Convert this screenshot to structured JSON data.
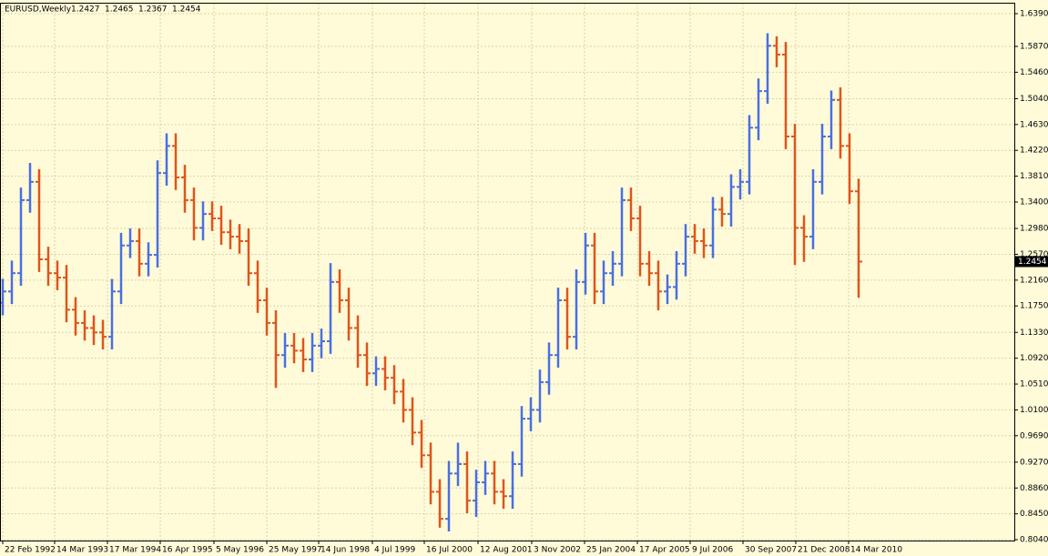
{
  "chart_data": {
    "type": "ohlc",
    "title": "EURUSD,Weekly",
    "header_values": [
      1.2427,
      1.2465,
      1.2367,
      1.2454
    ],
    "up_color": "#4a6fe0",
    "down_color": "#e0541c",
    "grid": true,
    "xlim": [
      -3,
      1111
    ],
    "ylim": [
      0.8026,
      1.6549
    ],
    "xticks": [
      {
        "value": 0,
        "label": "22 Feb 1992"
      },
      {
        "value": 57,
        "label": "14 Mar 1993"
      },
      {
        "value": 115,
        "label": "17 Mar 1994"
      },
      {
        "value": 173,
        "label": "16 Apr 1995"
      },
      {
        "value": 232,
        "label": "5 May 1996"
      },
      {
        "value": 290,
        "label": "25 May 1997"
      },
      {
        "value": 347,
        "label": "14 Jun 1998"
      },
      {
        "value": 406,
        "label": "4 Jul 1999"
      },
      {
        "value": 463,
        "label": "16 Jul 2000"
      },
      {
        "value": 522,
        "label": "12 Aug 2001"
      },
      {
        "value": 581,
        "label": "3 Nov 2002"
      },
      {
        "value": 639,
        "label": "25 Jan 2004"
      },
      {
        "value": 697,
        "label": "17 Apr 2005"
      },
      {
        "value": 755,
        "label": "9 Jul 2006"
      },
      {
        "value": 813,
        "label": "30 Sep 2007"
      },
      {
        "value": 871,
        "label": "21 Dec 2008"
      },
      {
        "value": 929,
        "label": "14 Mar 2010"
      }
    ],
    "yticks": [
      {
        "value": 1.639,
        "label": "1.6390"
      },
      {
        "value": 1.587,
        "label": "1.5870"
      },
      {
        "value": 1.546,
        "label": "1.5460"
      },
      {
        "value": 1.504,
        "label": "1.5040"
      },
      {
        "value": 1.463,
        "label": "1.4630"
      },
      {
        "value": 1.422,
        "label": "1.4220"
      },
      {
        "value": 1.381,
        "label": "1.3810"
      },
      {
        "value": 1.34,
        "label": "1.3400"
      },
      {
        "value": 1.298,
        "label": "1.2980"
      },
      {
        "value": 1.257,
        "label": "1.2570"
      },
      {
        "value": 1.216,
        "label": "1.2160"
      },
      {
        "value": 1.175,
        "label": "1.1750"
      },
      {
        "value": 1.133,
        "label": "1.1330"
      },
      {
        "value": 1.092,
        "label": "1.0920"
      },
      {
        "value": 1.051,
        "label": "1.0510"
      },
      {
        "value": 1.01,
        "label": "1.0100"
      },
      {
        "value": 0.969,
        "label": "0.9690"
      },
      {
        "value": 0.927,
        "label": "0.9270"
      },
      {
        "value": 0.886,
        "label": "0.8860"
      },
      {
        "value": 0.845,
        "label": "0.8450"
      },
      {
        "value": 0.804,
        "label": "0.8040"
      }
    ],
    "x": [
      0,
      10,
      20,
      30,
      40,
      50,
      60,
      70,
      80,
      90,
      100,
      110,
      120,
      130,
      140,
      150,
      160,
      170,
      180,
      190,
      200,
      210,
      220,
      230,
      240,
      250,
      260,
      270,
      280,
      290,
      300,
      310,
      320,
      330,
      340,
      350,
      360,
      370,
      380,
      390,
      400,
      410,
      420,
      430,
      440,
      450,
      460,
      470,
      480,
      490,
      500,
      510,
      520,
      530,
      540,
      550,
      560,
      570,
      580,
      590,
      600,
      610,
      620,
      630,
      640,
      650,
      660,
      670,
      680,
      690,
      700,
      710,
      720,
      730,
      740,
      750,
      760,
      770,
      780,
      790,
      800,
      810,
      820,
      830,
      840,
      850,
      860,
      870,
      880,
      890,
      900,
      910,
      920,
      930,
      940
    ],
    "open": [
      1.18,
      1.198,
      1.227,
      1.343,
      1.372,
      1.249,
      1.227,
      1.22,
      1.169,
      1.148,
      1.14,
      1.133,
      1.126,
      1.198,
      1.271,
      1.278,
      1.242,
      1.256,
      1.386,
      1.429,
      1.379,
      1.343,
      1.299,
      1.321,
      1.314,
      1.292,
      1.285,
      1.278,
      1.227,
      1.184,
      1.148,
      1.097,
      1.112,
      1.104,
      1.09,
      1.112,
      1.119,
      1.213,
      1.184,
      1.14,
      1.097,
      1.068,
      1.075,
      1.061,
      1.039,
      1.01,
      0.974,
      0.938,
      0.88,
      0.837,
      0.909,
      0.924,
      0.866,
      0.895,
      0.909,
      0.88,
      0.873,
      0.924,
      0.996,
      1.01,
      1.054,
      1.097,
      1.184,
      1.126,
      1.213,
      1.271,
      1.198,
      1.227,
      1.242,
      1.343,
      1.314,
      1.242,
      1.227,
      1.198,
      1.205,
      1.242,
      1.285,
      1.278,
      1.271,
      1.328,
      1.321,
      1.364,
      1.372,
      1.458,
      1.516,
      1.588,
      1.574,
      1.444,
      1.299,
      1.285,
      1.372,
      1.444,
      1.502,
      1.429,
      1.357
    ],
    "high": [
      1.218,
      1.247,
      1.363,
      1.402,
      1.392,
      1.269,
      1.247,
      1.24,
      1.189,
      1.168,
      1.16,
      1.153,
      1.218,
      1.291,
      1.298,
      1.298,
      1.276,
      1.406,
      1.449,
      1.449,
      1.399,
      1.363,
      1.341,
      1.341,
      1.334,
      1.312,
      1.305,
      1.298,
      1.247,
      1.204,
      1.168,
      1.132,
      1.132,
      1.124,
      1.132,
      1.139,
      1.243,
      1.233,
      1.204,
      1.16,
      1.117,
      1.095,
      1.095,
      1.081,
      1.059,
      1.03,
      0.994,
      0.958,
      0.9,
      0.929,
      0.958,
      0.944,
      0.915,
      0.929,
      0.929,
      0.9,
      0.944,
      1.016,
      1.03,
      1.074,
      1.117,
      1.204,
      1.204,
      1.233,
      1.291,
      1.291,
      1.247,
      1.262,
      1.363,
      1.363,
      1.334,
      1.262,
      1.247,
      1.225,
      1.262,
      1.305,
      1.305,
      1.298,
      1.348,
      1.348,
      1.384,
      1.392,
      1.478,
      1.536,
      1.608,
      1.603,
      1.594,
      1.464,
      1.319,
      1.392,
      1.464,
      1.517,
      1.522,
      1.449,
      1.377
    ],
    "low": [
      1.16,
      1.178,
      1.207,
      1.323,
      1.229,
      1.207,
      1.2,
      1.149,
      1.128,
      1.12,
      1.113,
      1.106,
      1.106,
      1.178,
      1.251,
      1.222,
      1.222,
      1.236,
      1.366,
      1.359,
      1.323,
      1.279,
      1.279,
      1.294,
      1.272,
      1.265,
      1.258,
      1.207,
      1.164,
      1.128,
      1.045,
      1.077,
      1.084,
      1.07,
      1.07,
      1.092,
      1.099,
      1.164,
      1.12,
      1.077,
      1.048,
      1.048,
      1.041,
      1.019,
      0.99,
      0.954,
      0.918,
      0.86,
      0.823,
      0.817,
      0.889,
      0.846,
      0.84,
      0.875,
      0.86,
      0.853,
      0.853,
      0.904,
      0.976,
      0.99,
      1.034,
      1.077,
      1.106,
      1.106,
      1.193,
      1.178,
      1.178,
      1.207,
      1.222,
      1.294,
      1.222,
      1.207,
      1.168,
      1.178,
      1.185,
      1.222,
      1.258,
      1.251,
      1.251,
      1.301,
      1.301,
      1.344,
      1.352,
      1.438,
      1.496,
      1.554,
      1.424,
      1.24,
      1.245,
      1.265,
      1.352,
      1.424,
      1.409,
      1.337,
      1.188
    ],
    "close": [
      1.198,
      1.227,
      1.343,
      1.372,
      1.249,
      1.227,
      1.22,
      1.169,
      1.148,
      1.14,
      1.133,
      1.126,
      1.198,
      1.271,
      1.278,
      1.242,
      1.256,
      1.386,
      1.429,
      1.379,
      1.343,
      1.299,
      1.321,
      1.314,
      1.292,
      1.285,
      1.278,
      1.227,
      1.184,
      1.148,
      1.097,
      1.112,
      1.104,
      1.09,
      1.112,
      1.119,
      1.213,
      1.184,
      1.14,
      1.097,
      1.068,
      1.075,
      1.061,
      1.039,
      1.01,
      0.974,
      0.938,
      0.88,
      0.837,
      0.909,
      0.924,
      0.866,
      0.895,
      0.909,
      0.88,
      0.873,
      0.924,
      0.996,
      1.01,
      1.054,
      1.097,
      1.184,
      1.126,
      1.213,
      1.271,
      1.198,
      1.227,
      1.242,
      1.343,
      1.314,
      1.242,
      1.227,
      1.198,
      1.205,
      1.242,
      1.285,
      1.278,
      1.271,
      1.328,
      1.321,
      1.364,
      1.372,
      1.458,
      1.516,
      1.588,
      1.574,
      1.444,
      1.299,
      1.285,
      1.372,
      1.444,
      1.502,
      1.429,
      1.357,
      1.2454
    ]
  }
}
